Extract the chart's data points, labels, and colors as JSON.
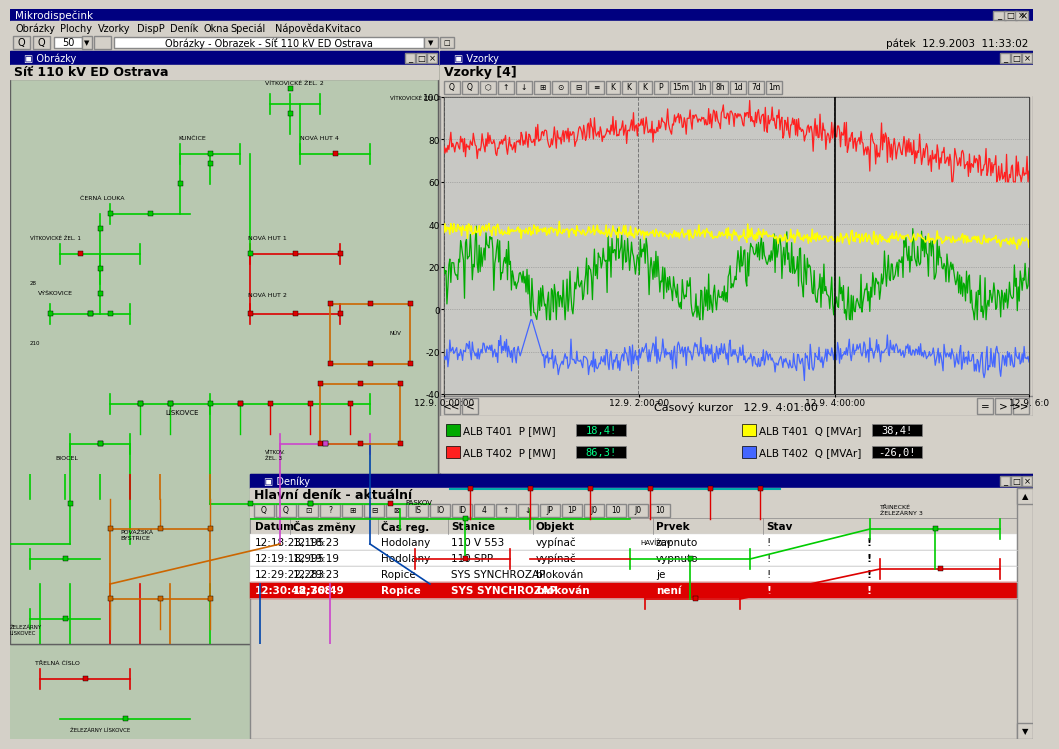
{
  "title_bar": "Mikrodispečink",
  "title_bar_bg": "#000080",
  "win_bg": "#d4d0c8",
  "menu_items": [
    "Obrázky",
    "Plochy",
    "Vzorky",
    "DispP",
    "Deník",
    "Okna",
    "Speciál",
    "Nápověda",
    "Kvitaco"
  ],
  "toolbar_zoom": "50",
  "toolbar_text": "Obrázky - Obrazek - Síť 110 kV ED Ostrava",
  "datetime_text": "pátek  12.9.2003  11:33:02",
  "panel_left_title": "Obrázky",
  "panel_left_subtitle": "Síť 110 kV ED Ostrava",
  "panel_right_title": "Vzorky",
  "panel_right_subtitle": "Vzorky [4]",
  "chart_ylim": [
    -40,
    100
  ],
  "chart_yticks": [
    -40,
    -20,
    0,
    20,
    40,
    60,
    80,
    100
  ],
  "chart_xlabel_ticks": [
    "12.9. 0:00:00",
    "12.9. 2:00:00",
    "12.9. 4:00:00",
    "12.9. 6:0"
  ],
  "cursor_text": "Časový kurzor   12.9. 4:01:00",
  "legend_items": [
    {
      "color": "#00aa00",
      "label": "ALB T401  P [MW]",
      "value": "18,4!"
    },
    {
      "color": "#ff2020",
      "label": "ALB T402  P [MW]",
      "value": "86,3!"
    },
    {
      "color": "#ffff00",
      "label": "ALB T401  Q [MVAr]",
      "value": "38,4!"
    },
    {
      "color": "#4466ff",
      "label": "ALB T402  Q [MVAr]",
      "value": "-26,0!"
    }
  ],
  "diary_title": "Deníky",
  "diary_subtitle": "Hlavní deník - aktuální",
  "diary_cols": [
    "Datum",
    "Čas změny",
    "Čas reg.",
    "Stanice",
    "Objekt",
    "Prvek",
    "Stav"
  ],
  "diary_rows": [
    [
      "",
      "12:18:23,195",
      "12:18:23",
      "Hodolany",
      "110 V 553",
      "vypínač",
      "zapnuto",
      "!"
    ],
    [
      "",
      "12:19:18,995",
      "12:19:19",
      "Hodolany",
      "110 SPP",
      "vypínač",
      "vypnuto",
      "!"
    ],
    [
      "",
      "12:29:22,283",
      "12:29:23",
      "Ropice",
      "SYS SYNCHROZAP",
      "blokován",
      "je",
      "!"
    ],
    [
      "",
      "12:30:48,768",
      "12:30:49",
      "Ropice",
      "SYS SYNCHROZAP",
      "blokován",
      "není",
      "!"
    ]
  ],
  "diary_highlight_row": 3,
  "diary_highlight_bg": "#dd0000",
  "diary_highlight_fg": "#ffffff"
}
